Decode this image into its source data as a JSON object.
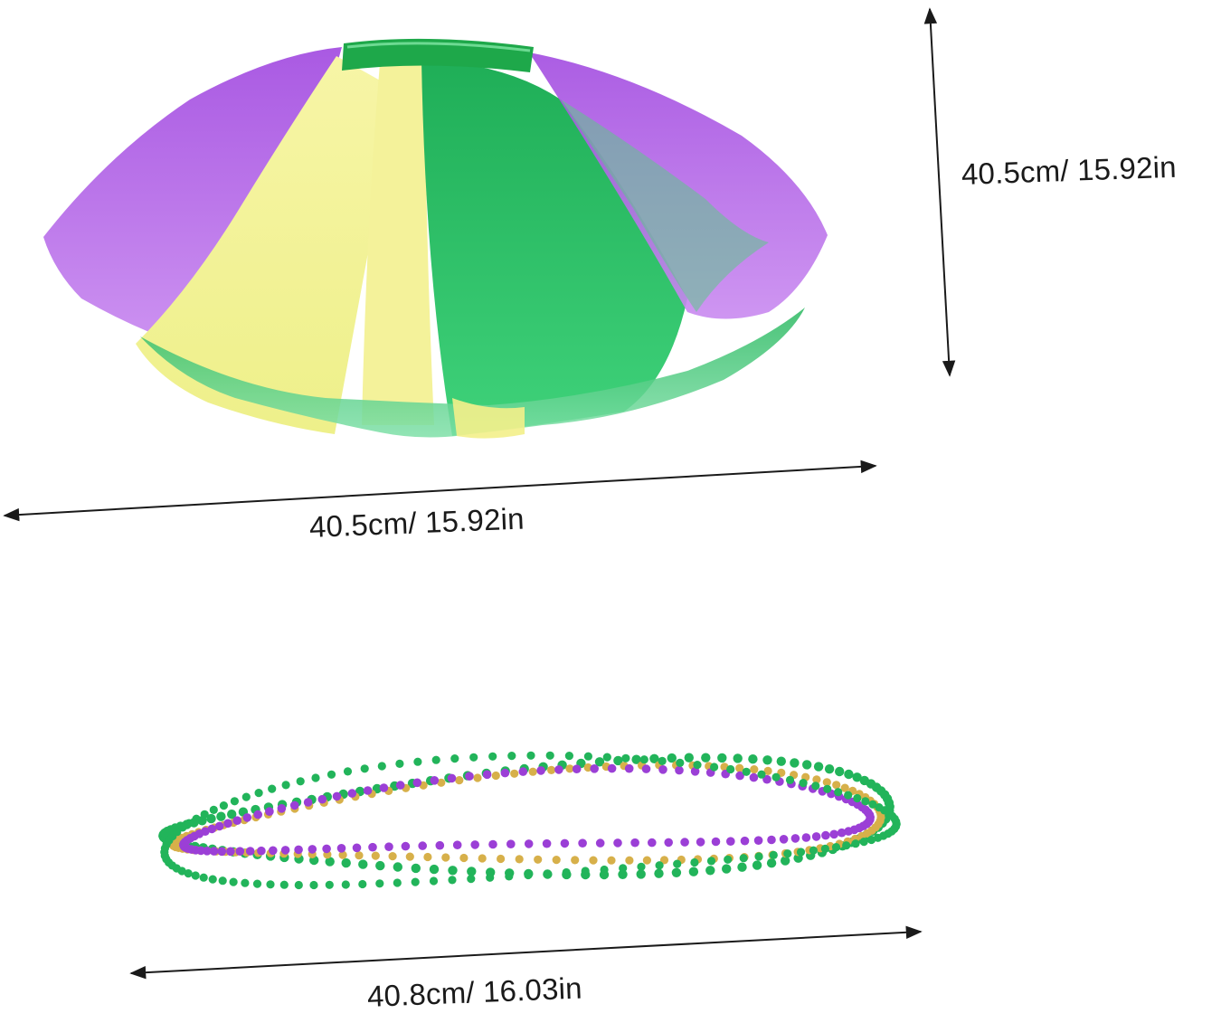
{
  "image": {
    "product_items": [
      "tulle-tutu-skirt",
      "bead-necklaces"
    ],
    "colors": {
      "purple": "#9b3fd6",
      "yellow": "#f3f08a",
      "green": "#22b45a",
      "waistband": "#1ea84a",
      "gold_bead": "#d7b04a",
      "arrow": "#1a1a1a"
    }
  },
  "skirt": {
    "height_label": "40.5cm/ 15.92in",
    "width_label": "40.5cm/ 15.92in"
  },
  "beads": {
    "length_label": "40.8cm/ 16.03in"
  }
}
